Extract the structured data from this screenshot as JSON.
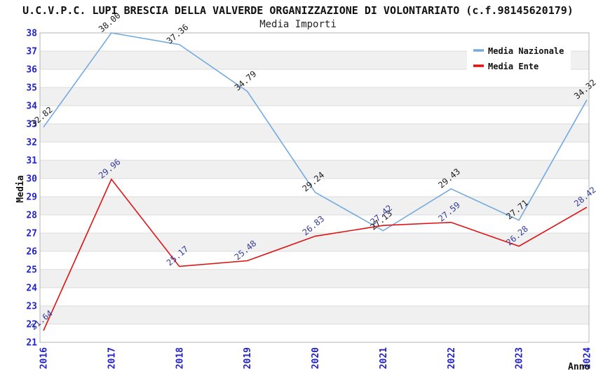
{
  "header": {
    "title": "U.C.V.P.C. LUPI BRESCIA DELLA VALVERDE ORGANIZZAZIONE DI VOLONTARIATO (c.f.98145620179)",
    "subtitle": "Media Importi"
  },
  "axes": {
    "y_title": "Media",
    "x_title": "Anno"
  },
  "colors": {
    "background": "#ffffff",
    "tick_blue": "#2222cc",
    "grid": "#dcdcdc",
    "band": "#f0f0f0",
    "border": "#b4b4b4",
    "legend_background": "#ffffff"
  },
  "chart_data": {
    "type": "line",
    "title": "U.C.V.P.C. LUPI BRESCIA DELLA VALVERDE ORGANIZZAZIONE DI VOLONTARIATO (c.f.98145620179)",
    "subtitle": "Media Importi",
    "xlabel": "Anno",
    "ylabel": "Media",
    "x": [
      "2016",
      "2017",
      "2018",
      "2019",
      "2020",
      "2021",
      "2022",
      "2023",
      "2024"
    ],
    "ylim": [
      21,
      38
    ],
    "y_tick_step": 1,
    "grid": "horizontal-only",
    "bands": "alternating-gray-1unit",
    "legend_position": "top-right",
    "label_decimals": 2,
    "series": [
      {
        "name": "Media Nazionale",
        "color": "#74aadf",
        "label_color": "#1a1a1a",
        "values": [
          32.82,
          38.0,
          37.36,
          34.79,
          29.24,
          27.13,
          29.43,
          27.71,
          34.32
        ]
      },
      {
        "name": "Media Ente",
        "color": "#df1111",
        "label_color": "#333a9e",
        "values": [
          21.64,
          29.96,
          25.17,
          25.48,
          26.83,
          27.42,
          27.59,
          26.28,
          28.42
        ]
      }
    ]
  }
}
